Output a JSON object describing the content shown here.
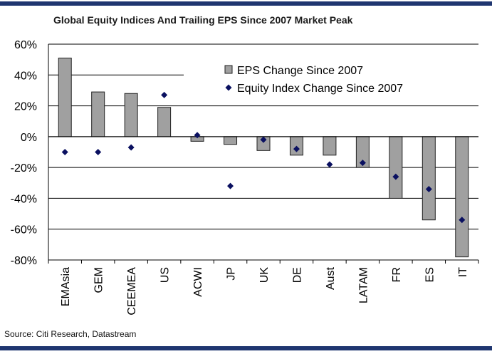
{
  "title": "Global Equity Indices And Trailing EPS Since 2007 Market Peak",
  "source": "Source: Citi Research, Datastream",
  "colors": {
    "rule": "#1f3670",
    "bar_fill": "#a0a0a0",
    "bar_stroke": "#222222",
    "marker": "#0a1060",
    "grid": "#000000"
  },
  "chart_data": {
    "type": "bar",
    "title": "Global Equity Indices And Trailing EPS Since 2007 Market Peak",
    "xlabel": "",
    "ylabel": "",
    "ylim": [
      -80,
      60
    ],
    "yticks": [
      60,
      40,
      20,
      0,
      -20,
      -40,
      -60,
      -80
    ],
    "ytick_labels": [
      "60%",
      "40%",
      "20%",
      "0%",
      "-20%",
      "-40%",
      "-60%",
      "-80%"
    ],
    "categories": [
      "EMAsia",
      "GEM",
      "CEEMEA",
      "US",
      "ACWI",
      "JP",
      "UK",
      "DE",
      "Aust",
      "LATAM",
      "FR",
      "ES",
      "IT"
    ],
    "series": [
      {
        "name": "EPS Change Since 2007",
        "kind": "bar",
        "values": [
          51,
          29,
          28,
          19,
          -3,
          -5,
          -9,
          -12,
          -12,
          -20,
          -40,
          -54,
          -78
        ]
      },
      {
        "name": "Equity Index Change Since 2007",
        "kind": "scatter",
        "values": [
          -10,
          -10,
          -7,
          27,
          1,
          -32,
          -2,
          -8,
          -18,
          -17,
          -26,
          -34,
          -54
        ]
      }
    ],
    "grid": true,
    "legend_position": "top-right"
  }
}
